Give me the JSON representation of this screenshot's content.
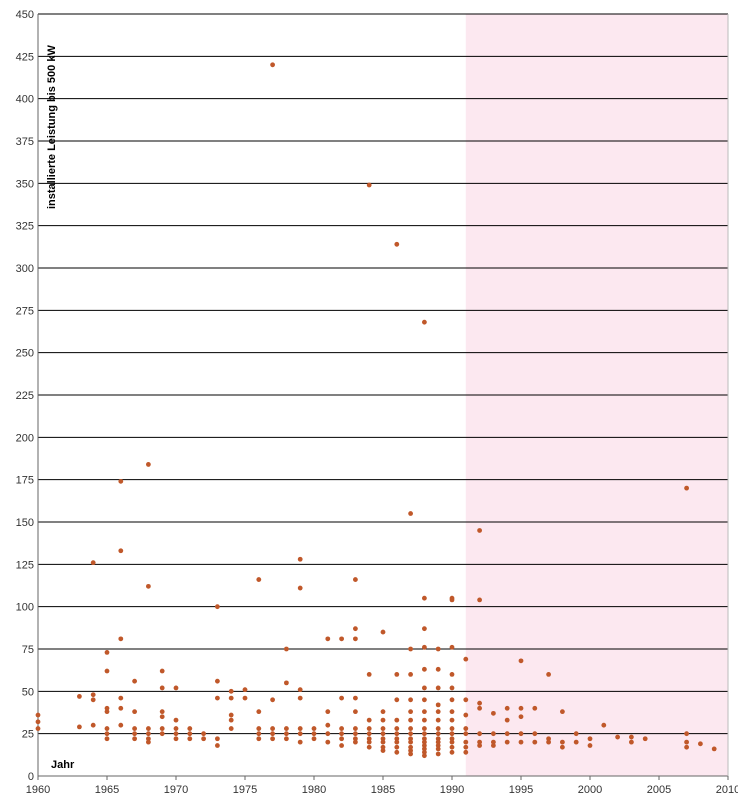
{
  "chart_data": {
    "type": "scatter",
    "title": "",
    "xlabel": "Jahr",
    "ylabel": "installierte Leistung bis 500 kW",
    "xlim": [
      1960,
      2010
    ],
    "ylim": [
      0,
      450
    ],
    "x_ticks": [
      1960,
      1965,
      1970,
      1975,
      1980,
      1985,
      1990,
      1995,
      2000,
      2005,
      2010
    ],
    "y_ticks": [
      0,
      25,
      50,
      75,
      100,
      125,
      150,
      175,
      200,
      225,
      250,
      275,
      300,
      325,
      350,
      375,
      400,
      425,
      450
    ],
    "grid": "horizontal",
    "shaded_region": {
      "x_from": 1991,
      "x_to": 2010,
      "color": "#fce8f0"
    },
    "colors": {
      "marker": "#c0582a",
      "grid": "#000000",
      "axis": "#666666"
    },
    "series": [
      {
        "points": [
          [
            1960,
            28
          ],
          [
            1960,
            32
          ],
          [
            1960,
            36
          ],
          [
            1963,
            29
          ],
          [
            1963,
            47
          ],
          [
            1964,
            30
          ],
          [
            1964,
            45
          ],
          [
            1964,
            48
          ],
          [
            1964,
            126
          ],
          [
            1965,
            22
          ],
          [
            1965,
            25
          ],
          [
            1965,
            28
          ],
          [
            1965,
            38
          ],
          [
            1965,
            40
          ],
          [
            1965,
            62
          ],
          [
            1965,
            73
          ],
          [
            1966,
            30
          ],
          [
            1966,
            40
          ],
          [
            1966,
            46
          ],
          [
            1966,
            81
          ],
          [
            1966,
            133
          ],
          [
            1966,
            174
          ],
          [
            1967,
            22
          ],
          [
            1967,
            25
          ],
          [
            1967,
            28
          ],
          [
            1967,
            38
          ],
          [
            1967,
            56
          ],
          [
            1968,
            20
          ],
          [
            1968,
            22
          ],
          [
            1968,
            25
          ],
          [
            1968,
            28
          ],
          [
            1968,
            112
          ],
          [
            1968,
            184
          ],
          [
            1969,
            25
          ],
          [
            1969,
            28
          ],
          [
            1969,
            35
          ],
          [
            1969,
            38
          ],
          [
            1969,
            52
          ],
          [
            1969,
            62
          ],
          [
            1970,
            22
          ],
          [
            1970,
            25
          ],
          [
            1970,
            28
          ],
          [
            1970,
            33
          ],
          [
            1970,
            52
          ],
          [
            1971,
            22
          ],
          [
            1971,
            25
          ],
          [
            1971,
            28
          ],
          [
            1972,
            22
          ],
          [
            1972,
            25
          ],
          [
            1973,
            18
          ],
          [
            1973,
            22
          ],
          [
            1973,
            46
          ],
          [
            1973,
            56
          ],
          [
            1973,
            100
          ],
          [
            1974,
            28
          ],
          [
            1974,
            33
          ],
          [
            1974,
            36
          ],
          [
            1974,
            46
          ],
          [
            1974,
            50
          ],
          [
            1975,
            46
          ],
          [
            1975,
            51
          ],
          [
            1976,
            22
          ],
          [
            1976,
            25
          ],
          [
            1976,
            28
          ],
          [
            1976,
            38
          ],
          [
            1976,
            116
          ],
          [
            1977,
            22
          ],
          [
            1977,
            25
          ],
          [
            1977,
            28
          ],
          [
            1977,
            45
          ],
          [
            1977,
            420
          ],
          [
            1978,
            22
          ],
          [
            1978,
            25
          ],
          [
            1978,
            28
          ],
          [
            1978,
            55
          ],
          [
            1978,
            75
          ],
          [
            1979,
            20
          ],
          [
            1979,
            25
          ],
          [
            1979,
            28
          ],
          [
            1979,
            46
          ],
          [
            1979,
            51
          ],
          [
            1979,
            111
          ],
          [
            1979,
            128
          ],
          [
            1980,
            22
          ],
          [
            1980,
            25
          ],
          [
            1980,
            28
          ],
          [
            1981,
            20
          ],
          [
            1981,
            25
          ],
          [
            1981,
            30
          ],
          [
            1981,
            38
          ],
          [
            1981,
            81
          ],
          [
            1982,
            18
          ],
          [
            1982,
            22
          ],
          [
            1982,
            25
          ],
          [
            1982,
            28
          ],
          [
            1982,
            46
          ],
          [
            1982,
            81
          ],
          [
            1983,
            20
          ],
          [
            1983,
            22
          ],
          [
            1983,
            25
          ],
          [
            1983,
            28
          ],
          [
            1983,
            38
          ],
          [
            1983,
            46
          ],
          [
            1983,
            81
          ],
          [
            1983,
            87
          ],
          [
            1983,
            116
          ],
          [
            1984,
            17
          ],
          [
            1984,
            20
          ],
          [
            1984,
            22
          ],
          [
            1984,
            25
          ],
          [
            1984,
            28
          ],
          [
            1984,
            33
          ],
          [
            1984,
            60
          ],
          [
            1984,
            349
          ],
          [
            1985,
            15
          ],
          [
            1985,
            17
          ],
          [
            1985,
            20
          ],
          [
            1985,
            22
          ],
          [
            1985,
            25
          ],
          [
            1985,
            28
          ],
          [
            1985,
            33
          ],
          [
            1985,
            38
          ],
          [
            1985,
            85
          ],
          [
            1986,
            14
          ],
          [
            1986,
            17
          ],
          [
            1986,
            20
          ],
          [
            1986,
            22
          ],
          [
            1986,
            25
          ],
          [
            1986,
            28
          ],
          [
            1986,
            33
          ],
          [
            1986,
            45
          ],
          [
            1986,
            60
          ],
          [
            1986,
            314
          ],
          [
            1987,
            13
          ],
          [
            1987,
            15
          ],
          [
            1987,
            17
          ],
          [
            1987,
            20
          ],
          [
            1987,
            22
          ],
          [
            1987,
            25
          ],
          [
            1987,
            28
          ],
          [
            1987,
            33
          ],
          [
            1987,
            38
          ],
          [
            1987,
            45
          ],
          [
            1987,
            60
          ],
          [
            1987,
            75
          ],
          [
            1987,
            155
          ],
          [
            1988,
            12
          ],
          [
            1988,
            14
          ],
          [
            1988,
            16
          ],
          [
            1988,
            18
          ],
          [
            1988,
            20
          ],
          [
            1988,
            22
          ],
          [
            1988,
            25
          ],
          [
            1988,
            28
          ],
          [
            1988,
            33
          ],
          [
            1988,
            38
          ],
          [
            1988,
            45
          ],
          [
            1988,
            52
          ],
          [
            1988,
            63
          ],
          [
            1988,
            76
          ],
          [
            1988,
            87
          ],
          [
            1988,
            105
          ],
          [
            1988,
            268
          ],
          [
            1989,
            13
          ],
          [
            1989,
            16
          ],
          [
            1989,
            18
          ],
          [
            1989,
            20
          ],
          [
            1989,
            22
          ],
          [
            1989,
            25
          ],
          [
            1989,
            28
          ],
          [
            1989,
            33
          ],
          [
            1989,
            38
          ],
          [
            1989,
            42
          ],
          [
            1989,
            52
          ],
          [
            1989,
            63
          ],
          [
            1989,
            75
          ],
          [
            1990,
            14
          ],
          [
            1990,
            17
          ],
          [
            1990,
            20
          ],
          [
            1990,
            22
          ],
          [
            1990,
            25
          ],
          [
            1990,
            28
          ],
          [
            1990,
            33
          ],
          [
            1990,
            38
          ],
          [
            1990,
            45
          ],
          [
            1990,
            52
          ],
          [
            1990,
            60
          ],
          [
            1990,
            76
          ],
          [
            1990,
            104
          ],
          [
            1990,
            105
          ],
          [
            1991,
            14
          ],
          [
            1991,
            17
          ],
          [
            1991,
            20
          ],
          [
            1991,
            25
          ],
          [
            1991,
            28
          ],
          [
            1991,
            36
          ],
          [
            1991,
            45
          ],
          [
            1991,
            69
          ],
          [
            1992,
            18
          ],
          [
            1992,
            20
          ],
          [
            1992,
            25
          ],
          [
            1992,
            40
          ],
          [
            1992,
            43
          ],
          [
            1992,
            104
          ],
          [
            1992,
            145
          ],
          [
            1993,
            18
          ],
          [
            1993,
            20
          ],
          [
            1993,
            25
          ],
          [
            1993,
            37
          ],
          [
            1994,
            20
          ],
          [
            1994,
            25
          ],
          [
            1994,
            33
          ],
          [
            1994,
            40
          ],
          [
            1995,
            20
          ],
          [
            1995,
            25
          ],
          [
            1995,
            35
          ],
          [
            1995,
            40
          ],
          [
            1995,
            68
          ],
          [
            1996,
            20
          ],
          [
            1996,
            25
          ],
          [
            1996,
            40
          ],
          [
            1997,
            20
          ],
          [
            1997,
            22
          ],
          [
            1997,
            60
          ],
          [
            1998,
            17
          ],
          [
            1998,
            20
          ],
          [
            1998,
            38
          ],
          [
            1999,
            20
          ],
          [
            1999,
            25
          ],
          [
            2000,
            18
          ],
          [
            2000,
            22
          ],
          [
            2001,
            30
          ],
          [
            2002,
            23
          ],
          [
            2003,
            20
          ],
          [
            2003,
            23
          ],
          [
            2004,
            22
          ],
          [
            2007,
            17
          ],
          [
            2007,
            20
          ],
          [
            2007,
            25
          ],
          [
            2007,
            170
          ],
          [
            2008,
            19
          ],
          [
            2009,
            16
          ]
        ]
      }
    ]
  }
}
